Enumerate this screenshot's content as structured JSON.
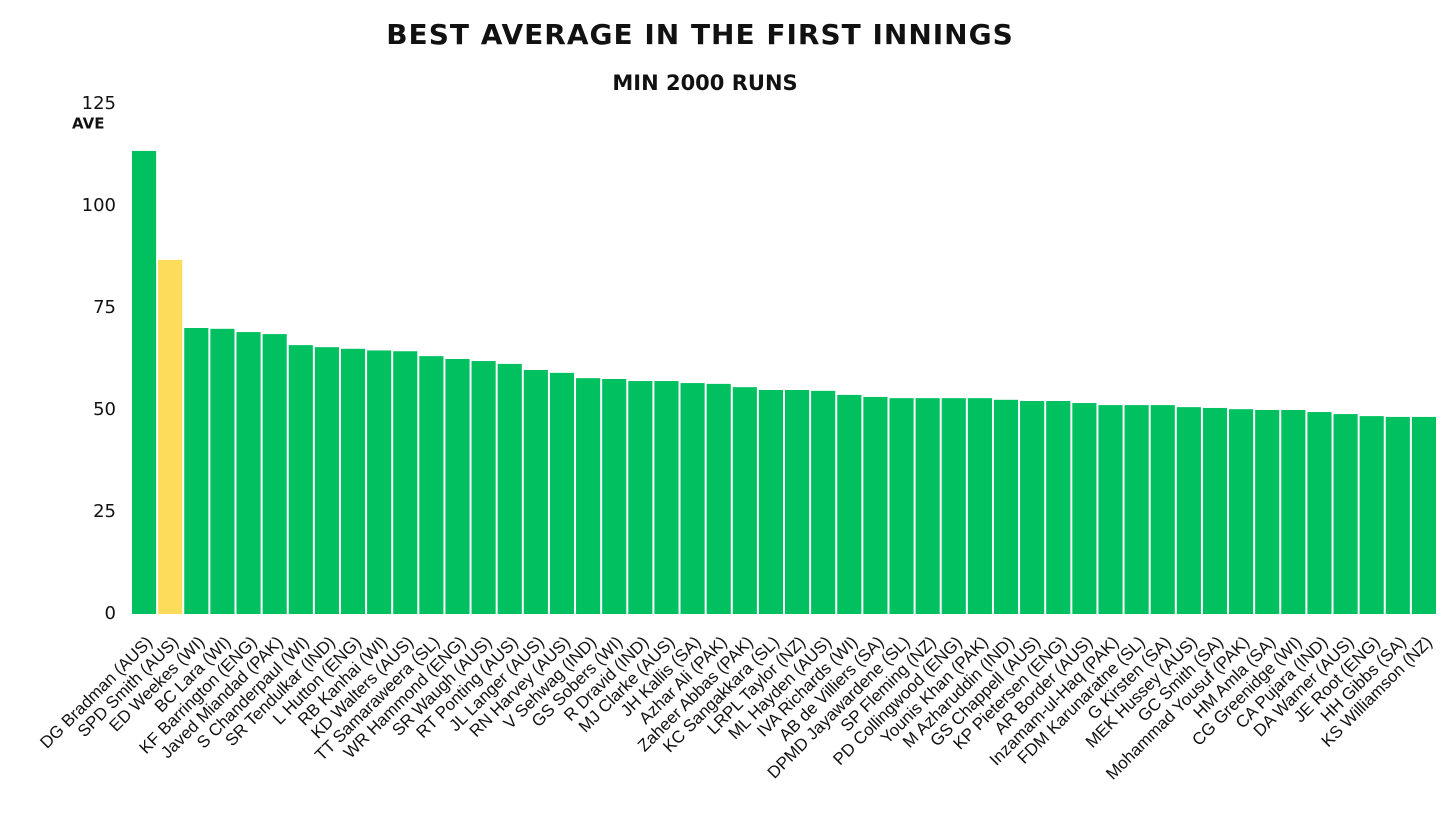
{
  "chart_data": {
    "type": "bar",
    "title": "BEST AVERAGE IN THE FIRST INNINGS",
    "subtitle": "MIN 2000 RUNS",
    "y_label": "AVE",
    "categories": [
      "DG Bradman (AUS)",
      "SPD Smith (AUS)",
      "ED Weekes (WI)",
      "BC Lara (WI)",
      "KF Barrington (ENG)",
      "Javed Miandad (PAK)",
      "S Chanderpaul (WI)",
      "SR Tendulkar (IND)",
      "L Hutton (ENG)",
      "RB Kanhai (WI)",
      "KD Walters (AUS)",
      "TT Samaraweera (SL)",
      "WR Hammond (ENG)",
      "SR Waugh (AUS)",
      "RT Ponting (AUS)",
      "JL Langer (AUS)",
      "RN Harvey (AUS)",
      "V Sehwag (IND)",
      "GS Sobers (WI)",
      "R Dravid (IND)",
      "MJ Clarke (AUS)",
      "JH Kallis (SA)",
      "Azhar Ali (PAK)",
      "Zaheer Abbas (PAK)",
      "KC Sangakkara (SL)",
      "LRPL Taylor (NZ)",
      "ML Hayden (AUS)",
      "IVA Richards (WI)",
      "AB de Villiers (SA)",
      "DPMD Jayawardene (SL)",
      "SP Fleming (NZ)",
      "PD Collingwood (ENG)",
      "Younis Khan (PAK)",
      "M Azharuddin (IND)",
      "GS Chappell (AUS)",
      "KP Pietersen (ENG)",
      "AR Border (AUS)",
      "Inzamam-ul-Haq (PAK)",
      "FDM Karunaratne (SL)",
      "G Kirsten (SA)",
      "MEK Hussey (AUS)",
      "GC Smith (SA)",
      "Mohammad Yousuf (PAK)",
      "HM Amla (SA)",
      "CG Greenidge (WI)",
      "CA Pujara (IND)",
      "DA Warner (AUS)",
      "JE Root (ENG)",
      "HH Gibbs (SA)",
      "KS Williamson (NZ)"
    ],
    "values": [
      113.5,
      86.8,
      70.1,
      69.9,
      69.1,
      68.6,
      65.9,
      65.4,
      65.0,
      64.6,
      64.4,
      63.2,
      62.5,
      62.0,
      61.3,
      59.8,
      59.1,
      57.8,
      57.6,
      57.1,
      57.1,
      56.6,
      56.4,
      55.6,
      54.9,
      54.9,
      54.7,
      53.7,
      53.2,
      52.9,
      52.9,
      52.9,
      52.9,
      52.5,
      52.2,
      52.2,
      51.7,
      51.2,
      51.2,
      51.2,
      50.7,
      50.5,
      50.2,
      50.0,
      50.0,
      49.5,
      49.0,
      48.5,
      48.3,
      48.3
    ],
    "color": "#00c05f",
    "highlight": {
      "index": 1,
      "color": "#fcdc5a"
    },
    "ylim": [
      0,
      125
    ],
    "yticks": [
      0,
      25,
      50,
      75,
      100,
      125
    ],
    "grid": false
  }
}
